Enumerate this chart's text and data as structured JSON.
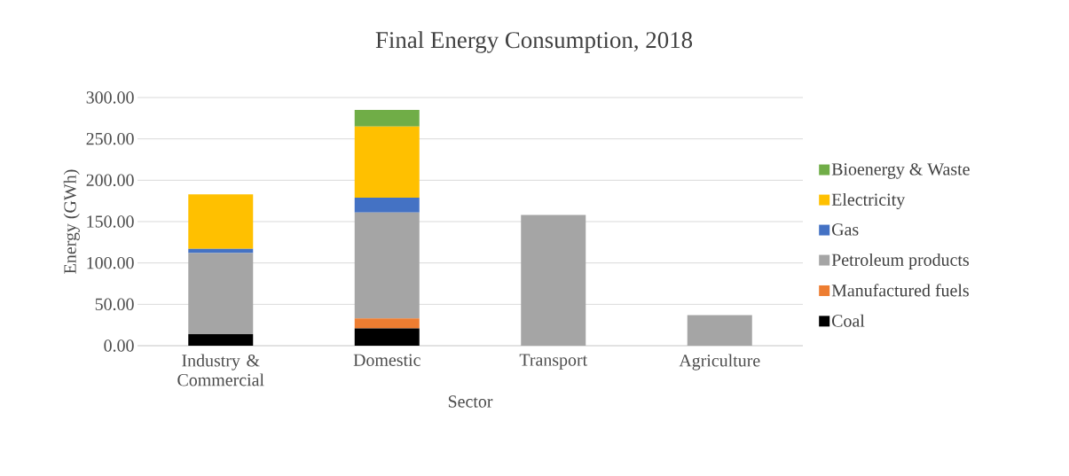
{
  "chart_data": {
    "type": "bar",
    "title": "Final Energy Consumption, 2018",
    "xlabel": "Sector",
    "ylabel": "Energy (GWh)",
    "categories": [
      "Industry & Commercial",
      "Domestic",
      "Transport",
      "Agriculture"
    ],
    "stacked": true,
    "series": [
      {
        "name": "Coal",
        "color": "#000000",
        "values": [
          14,
          21,
          0,
          0
        ]
      },
      {
        "name": "Manufactured fuels",
        "color": "#ed7d31",
        "values": [
          0,
          12,
          0,
          0
        ]
      },
      {
        "name": "Petroleum products",
        "color": "#a5a5a5",
        "values": [
          98,
          128,
          158,
          37
        ]
      },
      {
        "name": "Gas",
        "color": "#4472c4",
        "values": [
          5,
          18,
          0,
          0
        ]
      },
      {
        "name": "Electricity",
        "color": "#ffc000",
        "values": [
          66,
          86,
          0,
          0
        ]
      },
      {
        "name": "Bioenergy & Waste",
        "color": "#70ad47",
        "values": [
          0,
          20,
          0,
          0
        ]
      }
    ],
    "ylim": [
      0,
      300
    ],
    "yticks": [
      {
        "value": 0,
        "label": "0.00"
      },
      {
        "value": 50,
        "label": "50.00"
      },
      {
        "value": 100,
        "label": "100.00"
      },
      {
        "value": 150,
        "label": "150.00"
      },
      {
        "value": 200,
        "label": "200.00"
      },
      {
        "value": 250,
        "label": "250.00"
      },
      {
        "value": 300,
        "label": "300.00"
      }
    ],
    "grid": "y",
    "legend": "right"
  }
}
